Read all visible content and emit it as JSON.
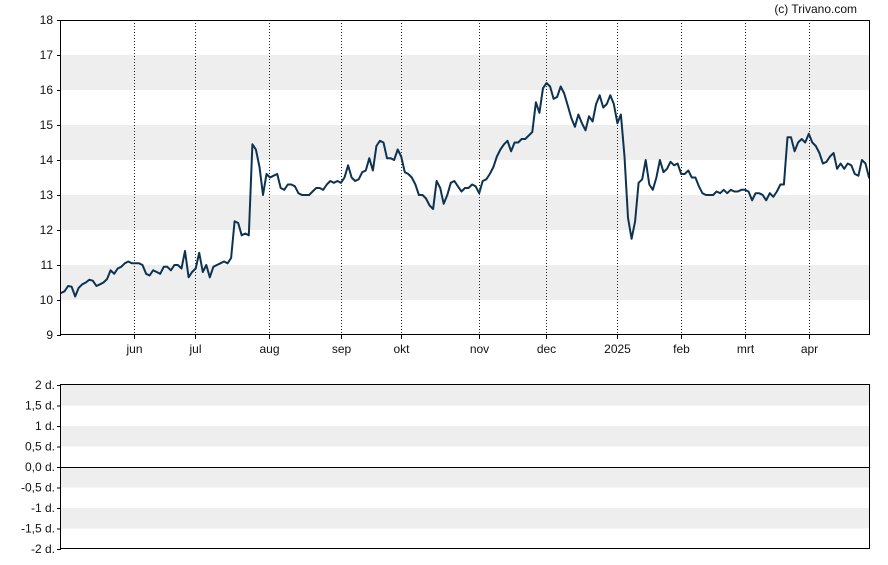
{
  "copyright": "(c) Trivano.com",
  "colors": {
    "line": "#0d3352",
    "band": "#eeeeee",
    "grid": "#222222",
    "axis": "#000000",
    "background": "#ffffff"
  },
  "chart_data": [
    {
      "type": "line",
      "name": "price-chart",
      "ylim": [
        9,
        18
      ],
      "y_ticks": [
        "9",
        "10",
        "11",
        "12",
        "13",
        "14",
        "15",
        "16",
        "17",
        "18"
      ],
      "shaded_bands": [
        [
          10,
          11
        ],
        [
          12,
          13
        ],
        [
          14,
          15
        ],
        [
          16,
          17
        ]
      ],
      "x_tick_labels": [
        "jun",
        "jul",
        "aug",
        "sep",
        "okt",
        "nov",
        "dec",
        "2025",
        "feb",
        "mrt",
        "apr"
      ],
      "vertical_grid": "dotted",
      "series": [
        {
          "values": [
            10.2,
            10.25,
            10.4,
            10.38,
            10.1,
            10.35,
            10.45,
            10.5,
            10.58,
            10.55,
            10.4,
            10.45,
            10.5,
            10.6,
            10.85,
            10.75,
            10.9,
            10.95,
            11.05,
            11.1,
            11.05,
            11.05,
            11.05,
            11.0,
            10.75,
            10.7,
            10.85,
            10.8,
            10.75,
            10.95,
            10.95,
            10.85,
            11.0,
            11.0,
            10.9,
            11.4,
            10.65,
            10.8,
            10.9,
            11.35,
            10.8,
            11.0,
            10.65,
            10.95,
            11.0,
            11.05,
            11.1,
            11.05,
            11.2,
            12.25,
            12.2,
            11.85,
            11.9,
            11.85,
            14.45,
            14.3,
            13.8,
            13.0,
            13.6,
            13.5,
            13.55,
            13.6,
            13.2,
            13.15,
            13.3,
            13.3,
            13.25,
            13.05,
            13.0,
            13.0,
            13.0,
            13.1,
            13.2,
            13.2,
            13.15,
            13.3,
            13.4,
            13.35,
            13.4,
            13.35,
            13.5,
            13.85,
            13.5,
            13.4,
            13.45,
            13.65,
            13.7,
            14.05,
            13.7,
            14.4,
            14.55,
            14.5,
            14.05,
            14.05,
            14.0,
            14.3,
            14.1,
            13.65,
            13.6,
            13.5,
            13.3,
            13.0,
            13.0,
            12.9,
            12.7,
            12.6,
            13.4,
            13.2,
            12.75,
            13.0,
            13.35,
            13.4,
            13.25,
            13.1,
            13.2,
            13.2,
            13.3,
            13.25,
            13.05,
            13.4,
            13.45,
            13.6,
            13.8,
            14.1,
            14.3,
            14.45,
            14.55,
            14.25,
            14.5,
            14.5,
            14.6,
            14.6,
            14.7,
            14.8,
            15.65,
            15.35,
            16.05,
            16.2,
            16.1,
            15.75,
            15.8,
            16.1,
            15.9,
            15.55,
            15.2,
            14.95,
            15.3,
            15.05,
            14.85,
            15.25,
            15.1,
            15.6,
            15.85,
            15.5,
            15.6,
            15.85,
            15.6,
            15.05,
            15.3,
            14.1,
            12.35,
            11.75,
            12.25,
            13.35,
            13.45,
            14.0,
            13.3,
            13.15,
            13.5,
            14.0,
            13.65,
            13.75,
            13.95,
            13.85,
            13.9,
            13.6,
            13.6,
            13.7,
            13.5,
            13.5,
            13.25,
            13.05,
            13.0,
            13.0,
            13.0,
            13.1,
            13.05,
            13.15,
            13.05,
            13.15,
            13.1,
            13.1,
            13.15,
            13.15,
            13.1,
            12.85,
            13.05,
            13.05,
            13.0,
            12.85,
            13.05,
            12.95,
            13.1,
            13.3,
            13.3,
            14.65,
            14.65,
            14.25,
            14.5,
            14.6,
            14.5,
            14.75,
            14.5,
            14.4,
            14.2,
            13.9,
            13.95,
            14.1,
            14.2,
            13.75,
            13.9,
            13.75,
            13.9,
            13.85,
            13.6,
            13.55,
            14.0,
            13.9,
            13.5
          ]
        }
      ]
    },
    {
      "type": "line",
      "name": "dividend-chart",
      "ylim": [
        -2,
        2
      ],
      "y_ticks": [
        "-2 d.",
        "-1,5 d.",
        "-1 d.",
        "-0,5 d.",
        "0,0 d.",
        "0,5 d.",
        "1 d.",
        "1,5 d.",
        "2 d."
      ],
      "shaded_bands": [
        [
          -1.5,
          -1.0
        ],
        [
          -0.5,
          0.0
        ],
        [
          0.5,
          1.0
        ],
        [
          1.5,
          2.0
        ]
      ],
      "baseline": 0,
      "series": []
    }
  ]
}
